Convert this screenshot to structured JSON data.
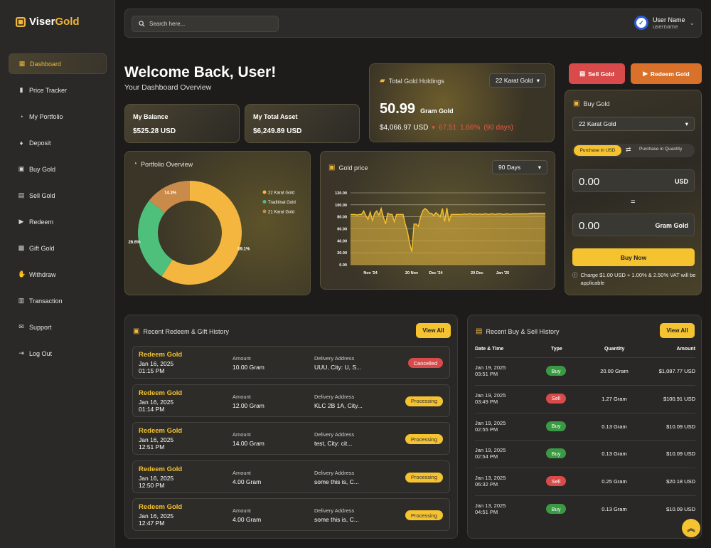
{
  "brand": {
    "name_a": "Viser",
    "name_b": "Gold"
  },
  "sidebar": {
    "items": [
      {
        "label": "Dashboard",
        "icon": "dashboard-icon",
        "glyph": "▦",
        "active": true
      },
      {
        "label": "Price Tracker",
        "icon": "chart-bars-icon",
        "glyph": "▮"
      },
      {
        "label": "My Portfolio",
        "icon": "pie-chart-icon",
        "glyph": "◔"
      },
      {
        "label": "Deposit",
        "icon": "money-bag-icon",
        "glyph": "♦"
      },
      {
        "label": "Buy Gold",
        "icon": "lock-bag-icon",
        "glyph": "▣"
      },
      {
        "label": "Sell Gold",
        "icon": "sell-icon",
        "glyph": "▤"
      },
      {
        "label": "Redeem",
        "icon": "truck-icon",
        "glyph": "▶"
      },
      {
        "label": "Gift Gold",
        "icon": "gift-icon",
        "glyph": "▩"
      },
      {
        "label": "Withdraw",
        "icon": "hand-money-icon",
        "glyph": "✋"
      },
      {
        "label": "Transaction",
        "icon": "clipboard-icon",
        "glyph": "▥"
      },
      {
        "label": "Support",
        "icon": "envelope-icon",
        "glyph": "✉"
      },
      {
        "label": "Log Out",
        "icon": "logout-icon",
        "glyph": "⇥"
      }
    ]
  },
  "topbar": {
    "search_placeholder": "Search here...",
    "user_name": "User Name",
    "user_sub": "username"
  },
  "welcome": {
    "title": "Welcome Back, User!",
    "subtitle": "Your Dashboard Overview"
  },
  "balance": {
    "label": "My Balance",
    "value": "$525.28 USD"
  },
  "total_asset": {
    "label": "My Total Asset",
    "value": "$6,249.89 USD"
  },
  "holdings": {
    "title": "Total Gold Holdings",
    "select": "22 Karat Gold",
    "amount": "50.99",
    "unit": "Gram Gold",
    "usd": "$4,066.97 USD",
    "change": "67.51",
    "pct": "1.66%",
    "period": "(90 days)"
  },
  "actions": {
    "sell": "Sell Gold",
    "redeem": "Redeem Gold"
  },
  "buy_gold": {
    "title": "Buy Gold",
    "select": "22 Karat Gold",
    "tab_usd": "Purchase in USD",
    "tab_qty": "Purchase in Quantity",
    "usd_value": "0.00",
    "usd_unit": "USD",
    "equals": "=",
    "gram_value": "0.00",
    "gram_unit": "Gram Gold",
    "button": "Buy Now",
    "note": "Charge $1.00 USD + 1.00% & 2.50% VAT will be applicable"
  },
  "portfolio": {
    "title": "Portfolio Overview"
  },
  "gold_price": {
    "title": "Gold price",
    "select": "90 Days"
  },
  "redeem_history": {
    "title": "Recent Redeem & Gift History",
    "view_all": "View All",
    "amount_label": "Amount",
    "address_label": "Delivery Address",
    "rows": [
      {
        "title": "Redeem Gold",
        "date": "Jan 16, 2025",
        "time": "01:15 PM",
        "amount": "10.00 Gram",
        "address": "UUU, City: U, S...",
        "status": "Cancelled",
        "kind": "cancel"
      },
      {
        "title": "Redeem Gold",
        "date": "Jan 16, 2025",
        "time": "01:14 PM",
        "amount": "12.00 Gram",
        "address": "KLC 2B 1A, City...",
        "status": "Processing",
        "kind": "proc"
      },
      {
        "title": "Redeem Gold",
        "date": "Jan 16, 2025",
        "time": "12:51 PM",
        "amount": "14.00 Gram",
        "address": "test, City: cit...",
        "status": "Processing",
        "kind": "proc"
      },
      {
        "title": "Redeem Gold",
        "date": "Jan 16, 2025",
        "time": "12:50 PM",
        "amount": "4.00 Gram",
        "address": "some this is, C...",
        "status": "Processing",
        "kind": "proc"
      },
      {
        "title": "Redeem Gold",
        "date": "Jan 16, 2025",
        "time": "12:47 PM",
        "amount": "4.00 Gram",
        "address": "some this is, C...",
        "status": "Processing",
        "kind": "proc"
      }
    ]
  },
  "buy_sell_history": {
    "title": "Recent Buy & Sell History",
    "view_all": "View All",
    "headers": [
      "Date & Time",
      "Type",
      "Quantity",
      "Amount"
    ],
    "rows": [
      {
        "date": "Jan 19, 2025",
        "time": "03:51 PM",
        "type": "Buy",
        "kind": "buy",
        "qty": "20.00 Gram",
        "amount": "$1,087.77 USD"
      },
      {
        "date": "Jan 19, 2025",
        "time": "03:49 PM",
        "type": "Sell",
        "kind": "sell",
        "qty": "1.27 Gram",
        "amount": "$100.91 USD"
      },
      {
        "date": "Jan 19, 2025",
        "time": "02:55 PM",
        "type": "Buy",
        "kind": "buy",
        "qty": "0.13 Gram",
        "amount": "$10.09 USD"
      },
      {
        "date": "Jan 19, 2025",
        "time": "02:54 PM",
        "type": "Buy",
        "kind": "buy",
        "qty": "0.13 Gram",
        "amount": "$10.09 USD"
      },
      {
        "date": "Jan 13, 2025",
        "time": "06:32 PM",
        "type": "Sell",
        "kind": "sell",
        "qty": "0.25 Gram",
        "amount": "$20.18 USD"
      },
      {
        "date": "Jan 13, 2025",
        "time": "04:51 PM",
        "type": "Buy",
        "kind": "buy",
        "qty": "0.13 Gram",
        "amount": "$10.09 USD"
      }
    ]
  },
  "colors": {
    "gold": "#f5c230",
    "accent": "#f0b73b",
    "red": "#d94b4b",
    "green": "#3a9a43",
    "orange": "#d9712b"
  },
  "chart_data": [
    {
      "type": "pie",
      "categories": [
        "22 Karat Gold",
        "Traditinal Gold",
        "21 Karat Gold"
      ],
      "values": [
        59.1,
        26.6,
        14.3
      ],
      "value_labels": [
        "59.1%",
        "26.6%",
        "14.3%"
      ],
      "colors": [
        "#f5b63f",
        "#4fc07b",
        "#c98a4a"
      ],
      "donut": true,
      "legend": "right"
    },
    {
      "type": "area",
      "x_ticks": [
        "Nov '24",
        "20 Nov",
        "Dec '24",
        "20 Dec",
        "Jan '25"
      ],
      "y_ticks": [
        "0.00",
        "20.00",
        "40.00",
        "60.00",
        "80.00",
        "100.00",
        "120.00"
      ],
      "ylim": [
        0,
        120
      ],
      "grid": true,
      "values": [
        84,
        84,
        84,
        83,
        84,
        84,
        90,
        82,
        76,
        88,
        74,
        86,
        90,
        83,
        94,
        80,
        68,
        86,
        84,
        84,
        72,
        84,
        84,
        84,
        84,
        68,
        56,
        36,
        22,
        68,
        68,
        64,
        80,
        90,
        94,
        91,
        86,
        86,
        82,
        87,
        84,
        80,
        94,
        72,
        95,
        72,
        84,
        84,
        84,
        84,
        84,
        84,
        85,
        84,
        85,
        85,
        84,
        85,
        84,
        85,
        84,
        85,
        85,
        84,
        85,
        85,
        84,
        85,
        85,
        85,
        84,
        85,
        85,
        84,
        85,
        85,
        85,
        85,
        85,
        85,
        85,
        85,
        86,
        86,
        86,
        86,
        86,
        86,
        86,
        86
      ]
    }
  ]
}
